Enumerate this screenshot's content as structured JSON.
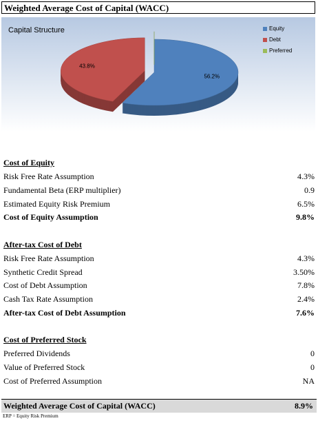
{
  "title": "Weighted Average Cost of Capital (WACC)",
  "chart_data": {
    "type": "pie",
    "title": "Capital Structure",
    "categories": [
      "Equity",
      "Debt",
      "Preferred"
    ],
    "values": [
      56.2,
      43.8,
      0
    ],
    "value_labels": [
      "56.2%",
      "43.8%",
      null
    ],
    "colors": [
      "#4f81bd",
      "#c0504d",
      "#9bbb59"
    ],
    "legend": "right"
  },
  "sections": [
    {
      "title": "Cost of Equity",
      "rows": [
        {
          "label": "Risk Free Rate Assumption",
          "value": "4.3%"
        },
        {
          "label": "Fundamental Beta (ERP multiplier)",
          "value": "0.9"
        },
        {
          "label": "Estimated Equity Risk Premium",
          "value": "6.5%"
        }
      ],
      "summary": {
        "label": "Cost of Equity Assumption",
        "value": "9.8%"
      }
    },
    {
      "title": "After-tax Cost of Debt",
      "rows": [
        {
          "label": "Risk Free Rate Assumption",
          "value": "4.3%"
        },
        {
          "label": "Synthetic Credit Spread",
          "value": "3.50%"
        },
        {
          "label": "Cost of Debt Assumption",
          "value": "7.8%"
        },
        {
          "label": "Cash Tax Rate Assumption",
          "value": "2.4%"
        }
      ],
      "summary": {
        "label": "After-tax Cost of Debt Assumption",
        "value": "7.6%"
      }
    },
    {
      "title": "Cost of Preferred Stock",
      "rows": [
        {
          "label": "Preferred Dividends",
          "value": "0"
        },
        {
          "label": "Value of Preferred Stock",
          "value": "0"
        },
        {
          "label": "Cost of Preferred Assumption",
          "value": "NA"
        }
      ],
      "summary": null
    }
  ],
  "total": {
    "label": "Weighted Average Cost of Capital (WACC)",
    "value": "8.9%"
  },
  "footnote": "ERP = Equity Risk Premium"
}
